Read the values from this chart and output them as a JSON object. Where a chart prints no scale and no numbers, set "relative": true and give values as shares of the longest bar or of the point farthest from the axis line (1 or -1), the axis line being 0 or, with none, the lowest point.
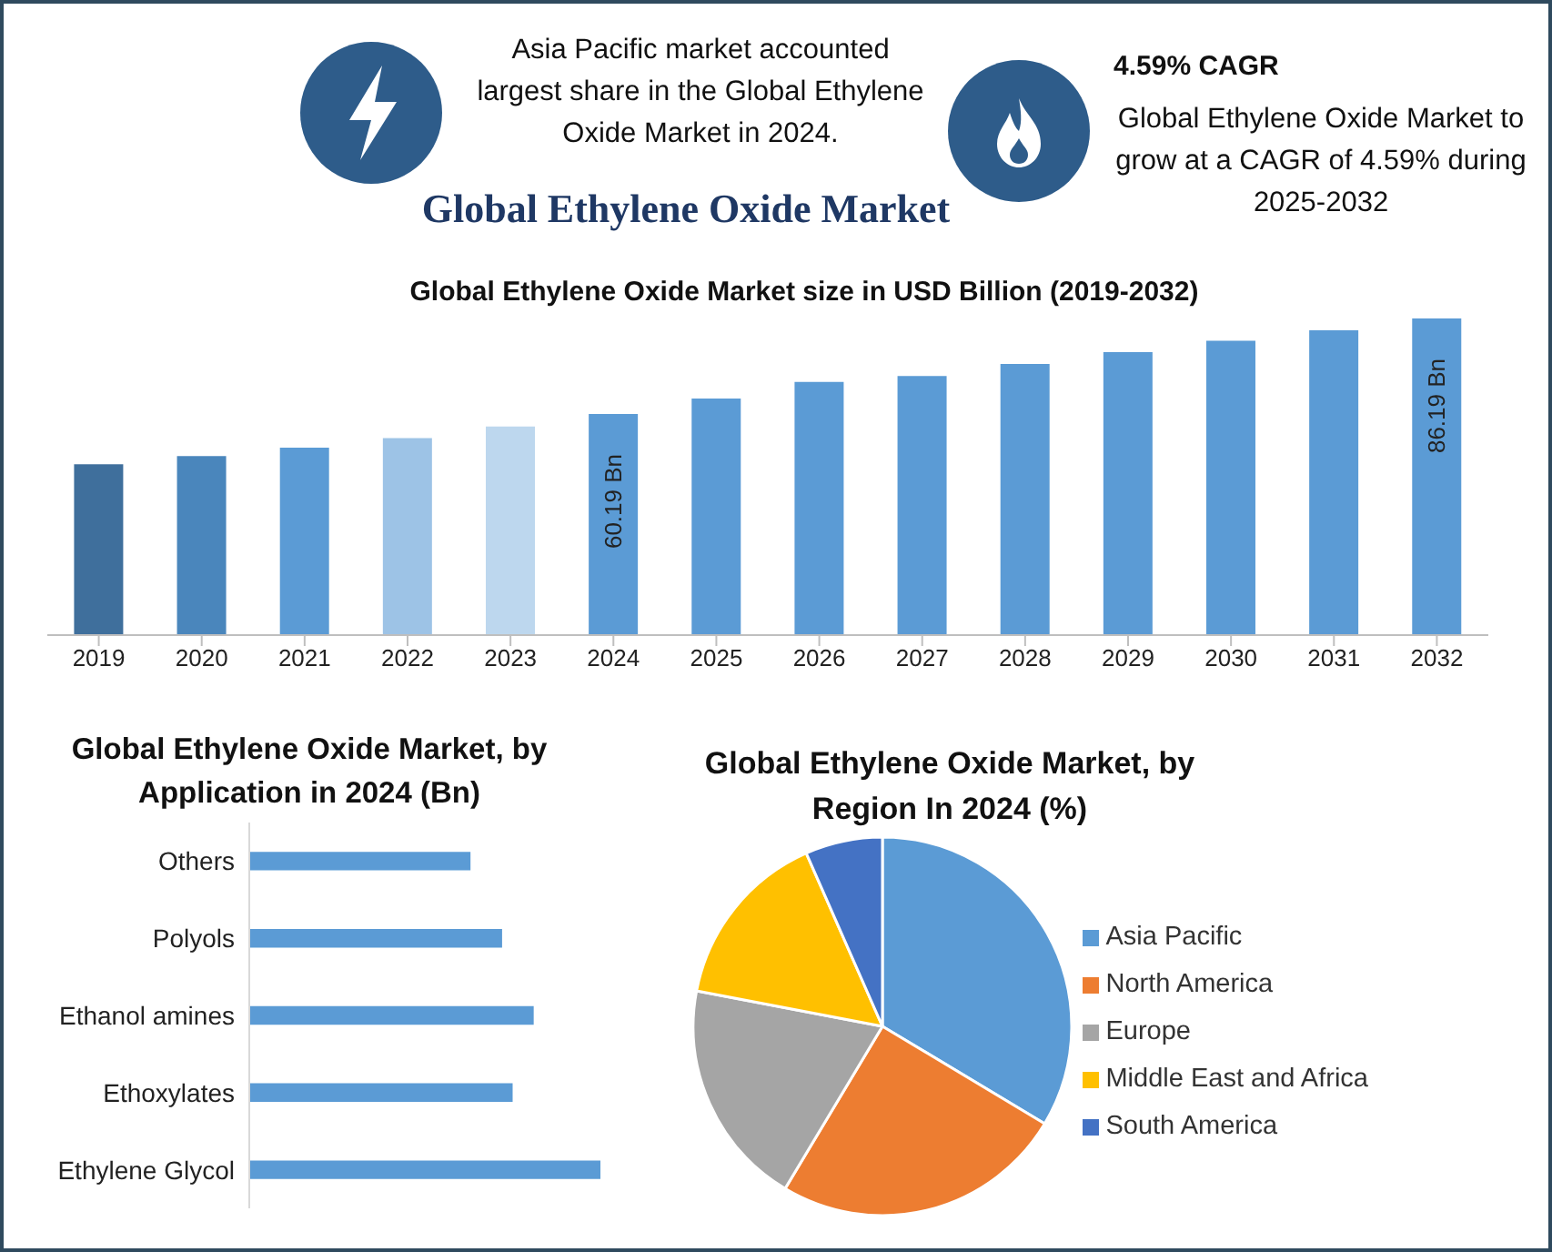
{
  "chart_data": [
    {
      "type": "other",
      "title": "Global Ethylene Oxide Market",
      "annotations": [
        "Asia Pacific market accounted largest share in the Global Ethylene Oxide Market in 2024.",
        "4.59% CAGR",
        "Global Ethylene Oxide Market to grow at a CAGR of 4.59% during 2025-2032"
      ]
    },
    {
      "type": "bar",
      "title": "Global Ethylene Oxide Market size in USD Billion (2019-2032)",
      "categories": [
        "2019",
        "2020",
        "2021",
        "2022",
        "2023",
        "2024",
        "2025",
        "2026",
        "2027",
        "2028",
        "2029",
        "2030",
        "2031",
        "2032"
      ],
      "values": [
        46.5,
        48.7,
        51.0,
        53.6,
        56.8,
        60.19,
        64.4,
        68.9,
        70.5,
        73.8,
        77.0,
        80.1,
        83.0,
        86.19
      ],
      "colors": [
        "#3f6f9c",
        "#4a86bc",
        "#5b9bd5",
        "#9dc3e6",
        "#bdd7ee",
        "#5b9bd5",
        "#5b9bd5",
        "#5b9bd5",
        "#5b9bd5",
        "#5b9bd5",
        "#5b9bd5",
        "#5b9bd5",
        "#5b9bd5",
        "#5b9bd5"
      ],
      "value_labels": [
        null,
        null,
        null,
        null,
        null,
        "60.19 Bn",
        null,
        null,
        null,
        null,
        null,
        null,
        null,
        "86.19 Bn"
      ],
      "tick_labels": "x"
    },
    {
      "type": "bar",
      "orientation": "horizontal",
      "relative": true,
      "title": "Global Ethylene Oxide Market, by Application in 2024 (Bn)",
      "categories": [
        "Others",
        "Polyols",
        "Ethanol amines",
        "Ethoxylates",
        "Ethylene Glycol"
      ],
      "values": [
        0.63,
        0.72,
        0.81,
        0.75,
        1
      ],
      "color": "#5b9bd5"
    },
    {
      "type": "pie",
      "title": "Global Ethylene Oxide Market, by Region In 2024 (%)",
      "categories": [
        "Asia Pacific",
        "North America",
        "Europe",
        "Middle East and Africa",
        "South America"
      ],
      "values": [
        33.6,
        25,
        19.4,
        15.4,
        6.6
      ],
      "colors": [
        "#5b9bd5",
        "#ed7d31",
        "#a5a5a5",
        "#ffc000",
        "#4472c4"
      ],
      "legend": "right"
    }
  ]
}
